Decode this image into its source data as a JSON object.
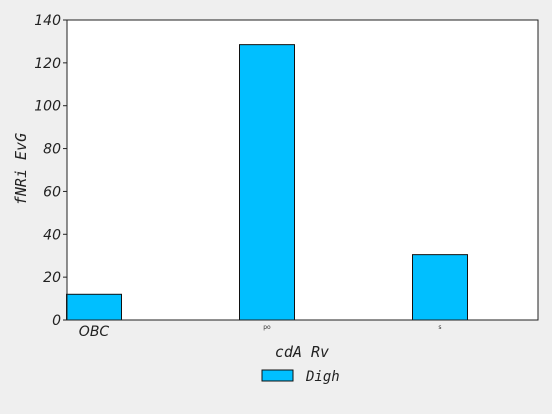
{
  "chart_data": {
    "type": "bar",
    "categories": [
      "OBC",
      "po",
      "s"
    ],
    "series": [
      {
        "name": "Digh",
        "values": [
          12,
          128.5,
          30.5
        ]
      }
    ],
    "xlabel": "cdA Rv",
    "ylabel": "fNRi EvG",
    "ylim": [
      0,
      140
    ],
    "yticks": [
      0,
      20,
      40,
      60,
      80,
      100,
      120,
      140
    ],
    "grid": false,
    "legend": "bottom-center",
    "colors": {
      "bar": "#00bfff",
      "bar_edge": "#111111",
      "axes": "#222222",
      "background": "#efefef",
      "plot_background": "#ffffff"
    }
  }
}
